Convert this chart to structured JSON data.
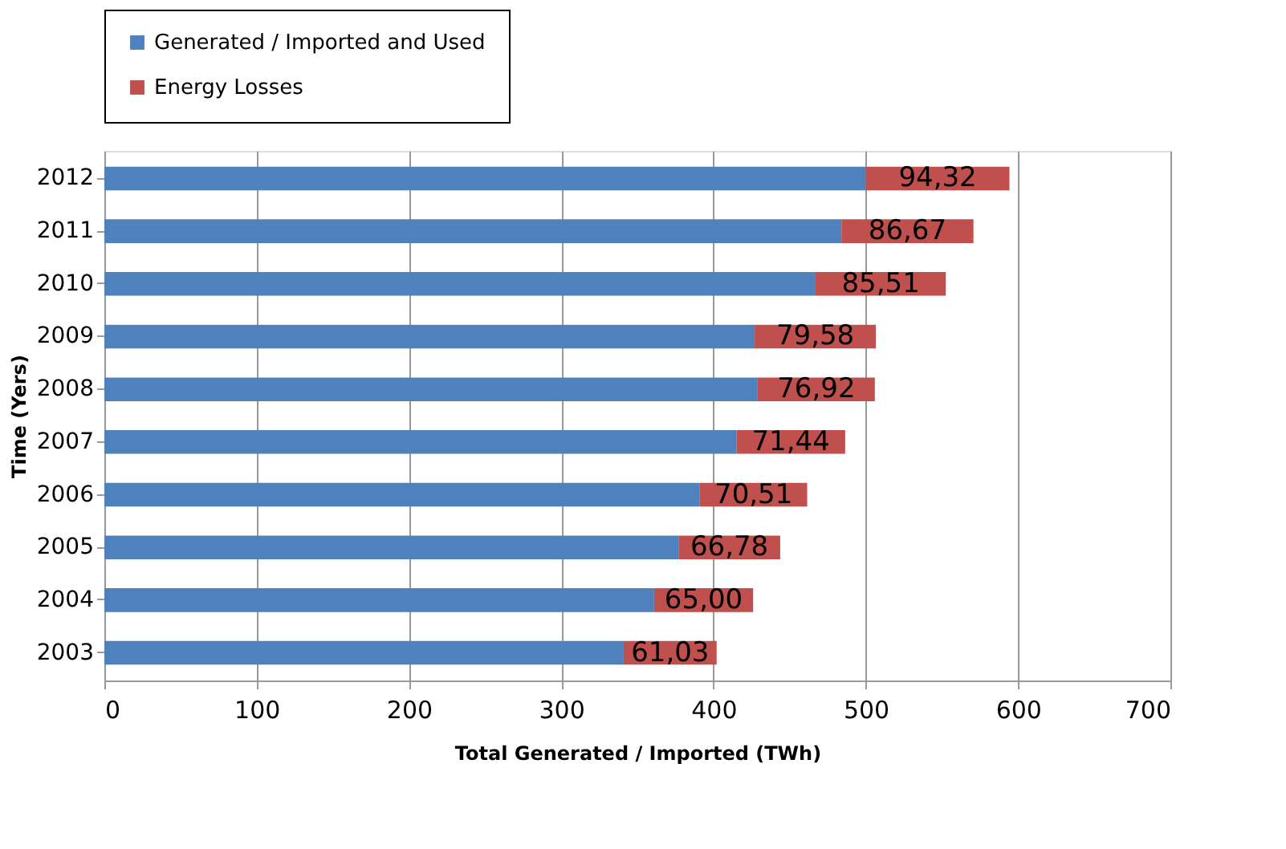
{
  "chart_data": {
    "type": "bar",
    "orientation": "horizontal",
    "stacked": true,
    "categories": [
      "2012",
      "2011",
      "2010",
      "2009",
      "2008",
      "2007",
      "2006",
      "2005",
      "2004",
      "2003"
    ],
    "series": [
      {
        "name": "Generated / Imported and Used",
        "color": "#4f81bd",
        "values": [
          500,
          484,
          467,
          427,
          429,
          415,
          391,
          377,
          361,
          341
        ]
      },
      {
        "name": "Energy Losses",
        "color": "#c0504d",
        "values": [
          94.32,
          86.67,
          85.51,
          79.58,
          76.92,
          71.44,
          70.51,
          66.78,
          65.0,
          61.03
        ],
        "value_labels": [
          "94,32",
          "86,67",
          "85,51",
          "79,58",
          "76,92",
          "71,44",
          "70,51",
          "66,78",
          "65,00",
          "61,03"
        ]
      }
    ],
    "xlabel": "Total Generated / Imported (TWh)",
    "ylabel": "Time (Yers)",
    "xlim": [
      0,
      700
    ],
    "xticks": [
      0,
      100,
      200,
      300,
      400,
      500,
      600,
      700
    ],
    "grid": "x",
    "legend": "top"
  }
}
